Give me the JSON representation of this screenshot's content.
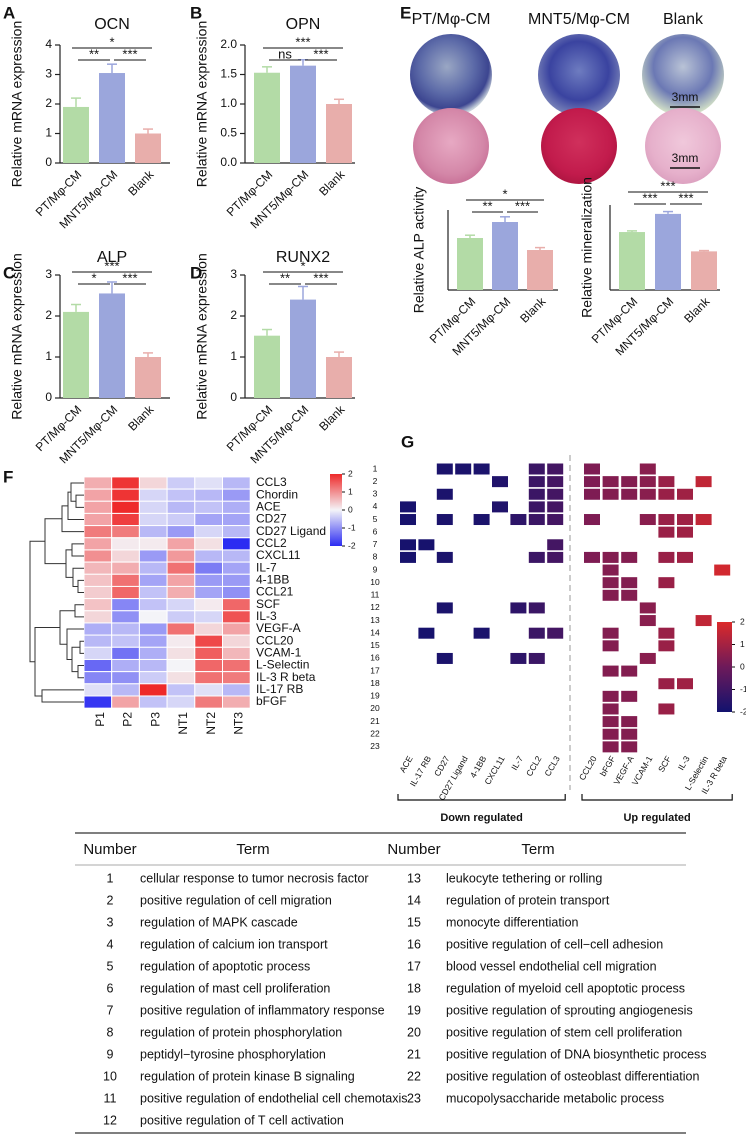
{
  "chart_data": [
    {
      "type": "bar",
      "panel": "A",
      "title": "OCN",
      "ylabel": "Relative mRNA expression",
      "categories": [
        "PT/Mφ-CM",
        "MNT5/Mφ-CM",
        "Blank"
      ],
      "values": [
        1.9,
        3.05,
        1.0
      ],
      "errors": [
        0.3,
        0.3,
        0.15
      ],
      "colors": [
        "#b3dba6",
        "#9ba6dc",
        "#e8aeab"
      ],
      "ylim": [
        0,
        4
      ],
      "yticks": [
        0,
        1,
        2,
        3,
        4
      ],
      "significance": [
        "*",
        "**",
        "***"
      ]
    },
    {
      "type": "bar",
      "panel": "B",
      "title": "OPN",
      "ylabel": "Relative mRNA expression",
      "categories": [
        "PT/Mφ-CM",
        "MNT5/Mφ-CM",
        "Blank"
      ],
      "values": [
        1.53,
        1.65,
        1.0
      ],
      "errors": [
        0.1,
        0.1,
        0.08
      ],
      "colors": [
        "#b3dba6",
        "#9ba6dc",
        "#e8aeab"
      ],
      "ylim": [
        0,
        2
      ],
      "yticks": [
        {
          "value": 0,
          "label": "0.0"
        },
        {
          "value": 0.5,
          "label": "0.5"
        },
        {
          "value": 1,
          "label": "1.0"
        },
        {
          "value": 1.5,
          "label": "1.5"
        },
        {
          "value": 2,
          "label": "2.0"
        }
      ],
      "significance": [
        "***",
        "ns",
        "***"
      ]
    },
    {
      "type": "bar",
      "panel": "C",
      "title": "ALP",
      "ylabel": "Relative mRNA expression",
      "categories": [
        "PT/Mφ-CM",
        "MNT5/Mφ-CM",
        "Blank"
      ],
      "values": [
        2.1,
        2.55,
        1.0
      ],
      "errors": [
        0.18,
        0.28,
        0.1
      ],
      "colors": [
        "#b3dba6",
        "#9ba6dc",
        "#e8aeab"
      ],
      "ylim": [
        0,
        3
      ],
      "yticks": [
        0,
        1,
        2,
        3
      ],
      "significance": [
        "***",
        "*",
        "***"
      ]
    },
    {
      "type": "bar",
      "panel": "D",
      "title": "RUNX2",
      "ylabel": "Relative mRNA expression",
      "categories": [
        "PT/Mφ-CM",
        "MNT5/Mφ-CM",
        "Blank"
      ],
      "values": [
        1.52,
        2.4,
        1.0
      ],
      "errors": [
        0.15,
        0.32,
        0.12
      ],
      "colors": [
        "#b3dba6",
        "#9ba6dc",
        "#e8aeab"
      ],
      "ylim": [
        0,
        3
      ],
      "yticks": [
        0,
        1,
        2,
        3
      ],
      "significance": [
        "*",
        "**",
        "***"
      ]
    },
    {
      "type": "bar",
      "ylabel": "Relative ALP activity",
      "categories": [
        "PT/Mφ-CM",
        "MNT5/Mφ-CM",
        "Blank"
      ],
      "values": [
        1.3,
        1.7,
        1.0
      ],
      "errors": [
        0.07,
        0.13,
        0.06
      ],
      "colors": [
        "#b3dba6",
        "#9ba6dc",
        "#e8aeab"
      ],
      "ylim": [
        0,
        2
      ],
      "significance": [
        "*",
        "**",
        "***"
      ]
    },
    {
      "type": "bar",
      "ylabel": "Relative mineralization",
      "categories": [
        "PT/Mφ-CM",
        "MNT5/Mφ-CM",
        "Blank"
      ],
      "values": [
        1.5,
        1.97,
        1.0
      ],
      "errors": [
        0.03,
        0.06,
        0.02
      ],
      "colors": [
        "#b3dba6",
        "#9ba6dc",
        "#e8aeab"
      ],
      "ylim": [
        0,
        2.2
      ],
      "significance": [
        "***",
        "***",
        "***"
      ]
    },
    {
      "type": "heatmap",
      "panel": "F",
      "rows": [
        "CCL3",
        "Chordin",
        "ACE",
        "CD27",
        "CD27 Ligand",
        "CCL2",
        "CXCL11",
        "IL-7",
        "4-1BB",
        "CCL21",
        "SCF",
        "IL-3",
        "VEGF-A",
        "CCL20",
        "VCAM-1",
        "L-Selectin",
        "IL-3 R beta",
        "IL-17 RB",
        "bFGF"
      ],
      "columns": [
        "P1",
        "P2",
        "P3",
        "NT1",
        "NT2",
        "NT3"
      ],
      "values": [
        [
          0.7,
          1.9,
          0.3,
          -0.4,
          -0.2,
          -0.6
        ],
        [
          0.8,
          1.9,
          -0.3,
          -0.5,
          -0.6,
          -0.9
        ],
        [
          0.8,
          2.0,
          -0.3,
          -0.6,
          -0.5,
          -0.7
        ],
        [
          0.8,
          1.8,
          -0.3,
          -0.4,
          -0.8,
          -0.8
        ],
        [
          1.2,
          1.2,
          -0.6,
          -0.9,
          -0.3,
          -0.6
        ],
        [
          0.8,
          0.1,
          0.1,
          0.8,
          0.2,
          -2.2
        ],
        [
          1.0,
          0.3,
          -0.9,
          0.9,
          -0.6,
          -0.6
        ],
        [
          0.6,
          0.7,
          -0.6,
          1.3,
          -1.2,
          -0.8
        ],
        [
          0.5,
          1.3,
          -0.8,
          0.8,
          -0.9,
          -0.9
        ],
        [
          0.4,
          1.4,
          -0.5,
          0.7,
          -0.8,
          -1.0
        ],
        [
          0.5,
          -1.1,
          -0.5,
          -0.3,
          0.1,
          1.4
        ],
        [
          0.3,
          -1.0,
          0.0,
          -0.4,
          -0.3,
          1.6
        ],
        [
          -0.7,
          -0.6,
          -0.9,
          1.3,
          0.3,
          0.8
        ],
        [
          -0.6,
          -0.5,
          -0.8,
          0.1,
          1.7,
          0.3
        ],
        [
          -0.3,
          -1.3,
          -0.7,
          0.2,
          1.5,
          0.6
        ],
        [
          -1.4,
          -0.7,
          -0.6,
          0.0,
          1.4,
          1.3
        ],
        [
          -1.1,
          -1.0,
          -0.4,
          0.2,
          1.3,
          1.2
        ],
        [
          -0.2,
          -0.6,
          2.0,
          -0.5,
          -0.2,
          -0.6
        ],
        [
          -1.9,
          0.8,
          -0.5,
          -0.3,
          1.2,
          0.7
        ]
      ],
      "zlim": [
        -2,
        2
      ],
      "zticks": [
        2,
        1,
        0,
        -1,
        -2
      ],
      "colors": [
        "#2c2cf2",
        "#f4f4f8",
        "#ee2a2a"
      ]
    },
    {
      "type": "heatmap",
      "panel": "G",
      "rows": [
        1,
        2,
        3,
        4,
        5,
        6,
        7,
        8,
        9,
        10,
        11,
        12,
        13,
        14,
        15,
        16,
        17,
        18,
        19,
        20,
        21,
        22,
        23
      ],
      "groups": [
        {
          "label": "Down regulated",
          "columns": [
            "ACE",
            "IL-17 RB",
            "CD27",
            "CD27 Ligand",
            "4-1BB",
            "CXCL11",
            "IL-7",
            "CCL2",
            "CCL3"
          ]
        },
        {
          "label": "Up regulated",
          "columns": [
            "CCL20",
            "bFGF",
            "VEGF-A",
            "VCAM-1",
            "SCF",
            "IL-3",
            "L-Selectin",
            "IL-3 R beta"
          ]
        }
      ],
      "values": [
        [
          null,
          null,
          -1.8,
          -1.8,
          -1.8,
          null,
          null,
          -1.1,
          -0.9,
          0.3,
          null,
          null,
          0.5,
          null,
          null,
          null,
          null
        ],
        [
          null,
          null,
          null,
          null,
          null,
          -1.7,
          null,
          -1.1,
          -0.9,
          0.3,
          0.4,
          0.4,
          0.5,
          0.8,
          null,
          1.5,
          null
        ],
        [
          null,
          null,
          -1.8,
          null,
          null,
          null,
          null,
          -1.1,
          -0.9,
          0.3,
          0.4,
          0.4,
          0.5,
          0.8,
          0.9,
          null,
          null
        ],
        [
          -1.9,
          null,
          null,
          null,
          null,
          -1.7,
          null,
          -1.1,
          -0.9,
          null,
          null,
          null,
          null,
          null,
          null,
          null,
          null
        ],
        [
          -1.9,
          null,
          -1.8,
          null,
          -1.8,
          null,
          -1.4,
          -1.1,
          -0.9,
          0.3,
          null,
          null,
          0.5,
          0.8,
          0.9,
          1.5,
          null
        ],
        [
          null,
          null,
          null,
          null,
          null,
          null,
          null,
          null,
          null,
          null,
          null,
          null,
          null,
          0.8,
          0.9,
          null,
          null
        ],
        [
          -1.9,
          -1.9,
          null,
          null,
          null,
          null,
          null,
          null,
          -0.9,
          null,
          null,
          null,
          null,
          null,
          null,
          null,
          null
        ],
        [
          -1.9,
          null,
          -1.8,
          null,
          null,
          null,
          null,
          -1.1,
          -0.9,
          0.3,
          0.4,
          0.4,
          null,
          0.8,
          0.9,
          null,
          null
        ],
        [
          null,
          null,
          null,
          null,
          null,
          null,
          null,
          null,
          null,
          null,
          0.4,
          null,
          null,
          null,
          null,
          null,
          1.8
        ],
        [
          null,
          null,
          null,
          null,
          null,
          null,
          null,
          null,
          null,
          null,
          0.4,
          0.4,
          null,
          0.8,
          null,
          null,
          null
        ],
        [
          null,
          null,
          null,
          null,
          null,
          null,
          null,
          null,
          null,
          null,
          0.4,
          0.4,
          null,
          null,
          null,
          null,
          null
        ],
        [
          null,
          null,
          -1.8,
          null,
          null,
          null,
          -1.4,
          -1.1,
          null,
          null,
          null,
          null,
          0.5,
          null,
          null,
          null,
          null
        ],
        [
          null,
          null,
          null,
          null,
          null,
          null,
          null,
          null,
          null,
          null,
          null,
          null,
          0.5,
          null,
          null,
          1.5,
          null
        ],
        [
          null,
          -1.9,
          null,
          null,
          -1.8,
          null,
          null,
          -1.1,
          -0.9,
          null,
          0.4,
          null,
          null,
          0.8,
          null,
          null,
          null
        ],
        [
          null,
          null,
          null,
          null,
          null,
          null,
          null,
          null,
          null,
          null,
          0.4,
          null,
          null,
          0.8,
          null,
          null,
          null
        ],
        [
          null,
          null,
          -1.8,
          null,
          null,
          null,
          -1.4,
          -1.1,
          null,
          null,
          null,
          null,
          0.5,
          null,
          null,
          null,
          null
        ],
        [
          null,
          null,
          null,
          null,
          null,
          null,
          null,
          null,
          null,
          null,
          0.4,
          0.4,
          null,
          null,
          null,
          null,
          null
        ],
        [
          null,
          null,
          null,
          null,
          null,
          null,
          null,
          null,
          null,
          null,
          null,
          null,
          null,
          0.8,
          0.9,
          null,
          null
        ],
        [
          null,
          null,
          null,
          null,
          null,
          null,
          null,
          null,
          null,
          null,
          0.4,
          0.4,
          null,
          null,
          null,
          null,
          null
        ],
        [
          null,
          null,
          null,
          null,
          null,
          null,
          null,
          null,
          null,
          null,
          0.4,
          null,
          null,
          0.8,
          null,
          null,
          null
        ],
        [
          null,
          null,
          null,
          null,
          null,
          null,
          null,
          null,
          null,
          null,
          0.4,
          0.4,
          null,
          null,
          null,
          null,
          null
        ],
        [
          null,
          null,
          null,
          null,
          null,
          null,
          null,
          null,
          null,
          null,
          0.4,
          0.4,
          null,
          null,
          null,
          null,
          null
        ],
        [
          null,
          null,
          null,
          null,
          null,
          null,
          null,
          null,
          null,
          null,
          0.4,
          0.4,
          null,
          null,
          null,
          null,
          null
        ]
      ],
      "zlim": [
        -2,
        2
      ],
      "zticks": [
        2,
        1,
        0,
        -1,
        -2
      ],
      "colors": [
        "#12126e",
        "#6d1a5a",
        "#dc2a2a"
      ]
    }
  ],
  "panel_E": {
    "panel": "E",
    "image_labels": [
      "PT/Mφ-CM",
      "MNT5/Mφ-CM",
      "Blank"
    ],
    "scale_bars": [
      "3mm",
      "3mm"
    ]
  },
  "table": {
    "header": [
      "Number",
      "Term",
      "Number",
      "Term"
    ],
    "left": [
      [
        1,
        "cellular response to tumor necrosis factor"
      ],
      [
        2,
        "positive regulation of cell migration"
      ],
      [
        3,
        "regulation of MAPK cascade"
      ],
      [
        4,
        "regulation of calcium ion transport"
      ],
      [
        5,
        "regulation of apoptotic process"
      ],
      [
        6,
        "regulation of mast cell proliferation"
      ],
      [
        7,
        "positive regulation of inflammatory response"
      ],
      [
        8,
        "regulation of protein phosphorylation"
      ],
      [
        9,
        "peptidyl−tyrosine phosphorylation"
      ],
      [
        10,
        "regulation of protein kinase B signaling"
      ],
      [
        11,
        "positive regulation of endothelial cell chemotaxis"
      ],
      [
        12,
        "positive regulation of T cell activation"
      ]
    ],
    "right": [
      [
        13,
        "leukocyte tethering or rolling"
      ],
      [
        14,
        "regulation of protein transport"
      ],
      [
        15,
        "monocyte differentiation"
      ],
      [
        16,
        "positive regulation of cell−cell adhesion"
      ],
      [
        17,
        "blood vessel endothelial cell migration"
      ],
      [
        18,
        "regulation of myeloid cell apoptotic process"
      ],
      [
        19,
        "positive regulation of sprouting angiogenesis"
      ],
      [
        20,
        "positive regulation of stem cell proliferation"
      ],
      [
        21,
        "positive regulation of DNA biosynthetic process"
      ],
      [
        22,
        "positive regulation of osteoblast differentiation"
      ],
      [
        23,
        "mucopolysaccharide metabolic process"
      ]
    ]
  }
}
